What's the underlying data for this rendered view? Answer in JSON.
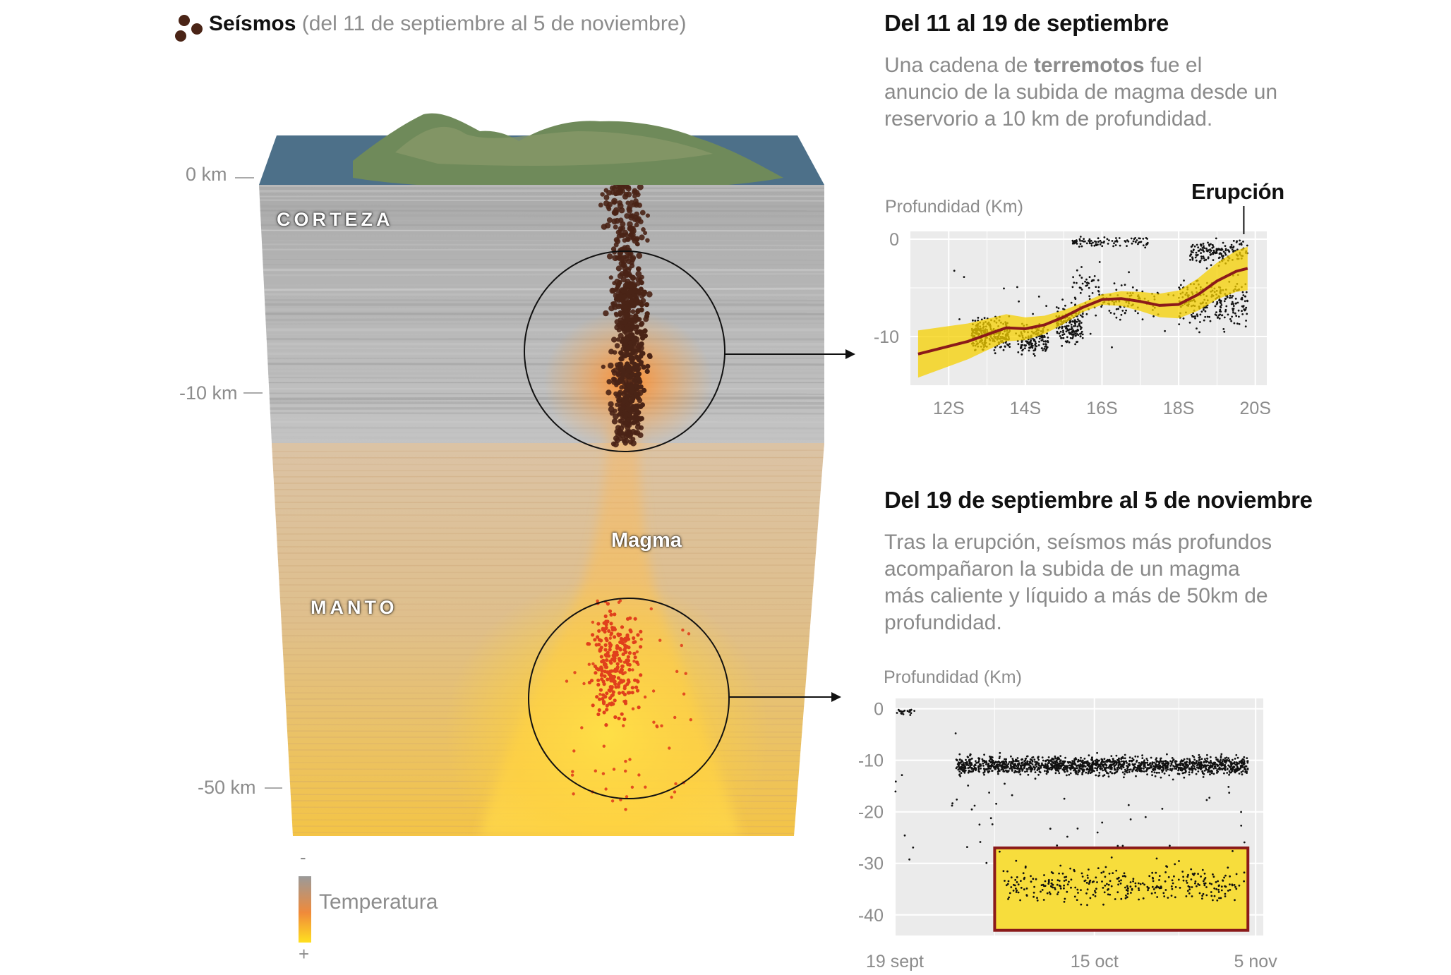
{
  "legend": {
    "title": "Seísmos",
    "subtitle": "(del 11 de septiembre al 5 de noviembre)",
    "temperature_label": "Temperatura",
    "temperature_min": "-",
    "temperature_max": "+"
  },
  "block": {
    "depth_labels": [
      "0 km",
      "-10 km",
      "-50 km"
    ],
    "crust_label": "CORTEZA",
    "mantle_label": "MANTO",
    "magma_label": "Magma"
  },
  "panel1": {
    "heading": "Del 11 al 19 de septiembre",
    "text_before": "Una cadena de ",
    "text_bold": "terremotos",
    "text_after": " fue el anuncio de la subida de magma desde un reservorio a 10 km de profundidad.",
    "annotation": "Erupción"
  },
  "panel2": {
    "heading": "Del 19 de septiembre al 5 de noviembre",
    "text": "Tras la erupción, seísmos más profundos acompañaron la subida de un magma más caliente y líquido a más de 50km de profundidad."
  },
  "colors": {
    "chart_bg": "#ebebeb",
    "trend_line": "#8b1a1a",
    "confidence_band": "#f5d000",
    "highlight_fill": "#f7dd3c",
    "highlight_border": "#8b1a1a",
    "quake_crust": "#4a2416",
    "quake_mantle": "#e0401c"
  },
  "chart_data": [
    {
      "type": "scatter",
      "ylabel": "Profundidad (Km)",
      "x_ticks": [
        "12S",
        "14S",
        "16S",
        "18S",
        "20S"
      ],
      "x_tick_values": [
        12,
        14,
        16,
        18,
        20
      ],
      "xlim": [
        11,
        20.3
      ],
      "y_ticks": [
        0,
        -10
      ],
      "y_tick_labels": [
        "0",
        "-10"
      ],
      "ylim": [
        -15,
        0.8
      ],
      "grid": true,
      "trend": [
        [
          11.2,
          -11.8
        ],
        [
          12,
          -11
        ],
        [
          12.5,
          -10.5
        ],
        [
          13,
          -9.8
        ],
        [
          13.5,
          -9.1
        ],
        [
          14,
          -9.2
        ],
        [
          14.5,
          -8.8
        ],
        [
          15,
          -8
        ],
        [
          15.5,
          -7
        ],
        [
          16,
          -6.2
        ],
        [
          16.5,
          -6.1
        ],
        [
          17,
          -6.4
        ],
        [
          17.5,
          -6.8
        ],
        [
          18,
          -6.7
        ],
        [
          18.5,
          -5.7
        ],
        [
          19,
          -4.3
        ],
        [
          19.5,
          -3.3
        ],
        [
          19.8,
          -3
        ]
      ],
      "clusters": [
        {
          "x": [
            12.6,
            13.6
          ],
          "y": [
            -12,
            -7.5
          ],
          "n": 260
        },
        {
          "x": [
            13.8,
            14.6
          ],
          "y": [
            -12.5,
            -8
          ],
          "n": 140
        },
        {
          "x": [
            14.8,
            15.5
          ],
          "y": [
            -11.5,
            -6.5
          ],
          "n": 160
        },
        {
          "x": [
            15.2,
            16
          ],
          "y": [
            -11,
            0
          ],
          "n": 45
        },
        {
          "x": [
            15.2,
            17.2
          ],
          "y": [
            0.4,
            -1
          ],
          "n": 90
        },
        {
          "x": [
            16,
            17.5
          ],
          "y": [
            -9,
            -4
          ],
          "n": 80
        },
        {
          "x": [
            18,
            19.8
          ],
          "y": [
            -10,
            -3
          ],
          "n": 230
        },
        {
          "x": [
            18.3,
            19.8
          ],
          "y": [
            0.4,
            -3
          ],
          "n": 160
        },
        {
          "x": [
            12,
            19.5
          ],
          "y": [
            -14,
            0
          ],
          "n": 40
        }
      ],
      "annotation_x": 19.7
    },
    {
      "type": "scatter",
      "ylabel": "Profundidad (Km)",
      "x_ticks": [
        "19 sept",
        "15 oct",
        "5 nov"
      ],
      "x_tick_values": [
        19,
        45,
        66
      ],
      "xlim": [
        19,
        67
      ],
      "y_ticks": [
        0,
        -10,
        -20,
        -30,
        -40
      ],
      "y_tick_labels": [
        "0",
        "-10",
        "-20",
        "-30",
        "-40"
      ],
      "ylim": [
        -44,
        2
      ],
      "grid": true,
      "highlight_region": {
        "x": [
          32,
          65
        ],
        "y": [
          -27,
          -43
        ]
      },
      "clusters": [
        {
          "x": [
            19.2,
            22
          ],
          "y": [
            -1.5,
            0.5
          ],
          "n": 20
        },
        {
          "x": [
            27,
            65
          ],
          "y": [
            -13.5,
            -8.5
          ],
          "n": 1500
        },
        {
          "x": [
            33,
            64
          ],
          "y": [
            -39,
            -29
          ],
          "n": 320
        },
        {
          "x": [
            19,
            65
          ],
          "y": [
            -42,
            -2
          ],
          "n": 60
        }
      ]
    }
  ]
}
